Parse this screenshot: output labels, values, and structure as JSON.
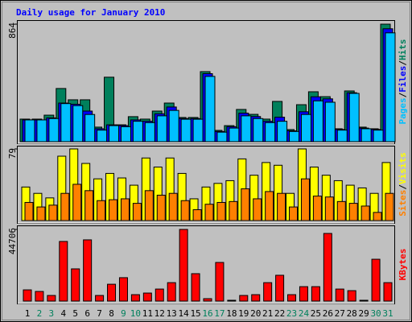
{
  "chart_data": [
    {
      "type": "bar",
      "title": "Daily usage for January 2010",
      "ylim": [
        0,
        864
      ],
      "yticks": [
        864
      ],
      "series": [
        {
          "name": "Hits",
          "color": "#00805c",
          "values": [
            166,
            166,
            195,
            391,
            308,
            308,
            107,
            474,
            124,
            184,
            166,
            225,
            284,
            178,
            178,
            515,
            83,
            118,
            237,
            201,
            166,
            296,
            89,
            272,
            367,
            331,
            95,
            373,
            107,
            95,
            864
          ]
        },
        {
          "name": "Files",
          "color": "#0000ff",
          "values": [
            160,
            160,
            175,
            284,
            275,
            225,
            95,
            124,
            118,
            160,
            150,
            205,
            255,
            170,
            170,
            500,
            75,
            110,
            210,
            185,
            150,
            180,
            80,
            220,
            330,
            315,
            90,
            360,
            100,
            90,
            830
          ]
        },
        {
          "name": "Pages",
          "color": "#00c0ff",
          "values": [
            160,
            160,
            170,
            280,
            265,
            200,
            85,
            118,
            110,
            150,
            140,
            190,
            230,
            165,
            165,
            480,
            70,
            100,
            190,
            170,
            140,
            150,
            75,
            200,
            300,
            290,
            85,
            355,
            95,
            85,
            800
          ]
        }
      ]
    },
    {
      "type": "bar",
      "ylim": [
        0,
        79
      ],
      "yticks": [
        79
      ],
      "series": [
        {
          "name": "Visits",
          "color": "#ffff00",
          "values": [
            37,
            30,
            25,
            71,
            79,
            63,
            46,
            52,
            47,
            39,
            69,
            59,
            69,
            52,
            24,
            37,
            41,
            44,
            68,
            50,
            64,
            61,
            30,
            79,
            59,
            50,
            44,
            39,
            36,
            30,
            64
          ]
        },
        {
          "name": "Sites",
          "color": "#ff8000",
          "values": [
            20,
            15,
            17,
            30,
            40,
            33,
            22,
            23,
            24,
            19,
            33,
            28,
            30,
            22,
            12,
            18,
            20,
            21,
            35,
            24,
            32,
            30,
            15,
            46,
            27,
            26,
            21,
            19,
            16,
            9,
            30
          ]
        }
      ]
    },
    {
      "type": "bar",
      "ylim": [
        0,
        44706
      ],
      "yticks": [
        44706
      ],
      "categories": [
        "1",
        "2",
        "3",
        "4",
        "5",
        "6",
        "7",
        "8",
        "9",
        "10",
        "11",
        "12",
        "13",
        "14",
        "15",
        "16",
        "17",
        "18",
        "19",
        "20",
        "21",
        "22",
        "23",
        "24",
        "25",
        "26",
        "27",
        "28",
        "29",
        "30",
        "31"
      ],
      "category_colors": [
        "#000000",
        "#00805c",
        "#00805c",
        "#000000",
        "#000000",
        "#000000",
        "#000000",
        "#000000",
        "#00805c",
        "#00805c",
        "#000000",
        "#000000",
        "#000000",
        "#000000",
        "#000000",
        "#00805c",
        "#00805c",
        "#000000",
        "#000000",
        "#000000",
        "#000000",
        "#000000",
        "#00805c",
        "#00805c",
        "#000000",
        "#000000",
        "#000000",
        "#000000",
        "#000000",
        "#00805c",
        "#00805c"
      ],
      "series": [
        {
          "name": "KBytes",
          "color": "#ff0000",
          "values": [
            7000,
            6000,
            3500,
            37200,
            20100,
            38200,
            3500,
            10500,
            14600,
            4000,
            5000,
            7500,
            11500,
            44706,
            17100,
            1500,
            24100,
            500,
            3500,
            4000,
            11500,
            16100,
            4000,
            9000,
            9000,
            42200,
            7500,
            6500,
            500,
            26100,
            11500
          ]
        }
      ]
    }
  ]
}
